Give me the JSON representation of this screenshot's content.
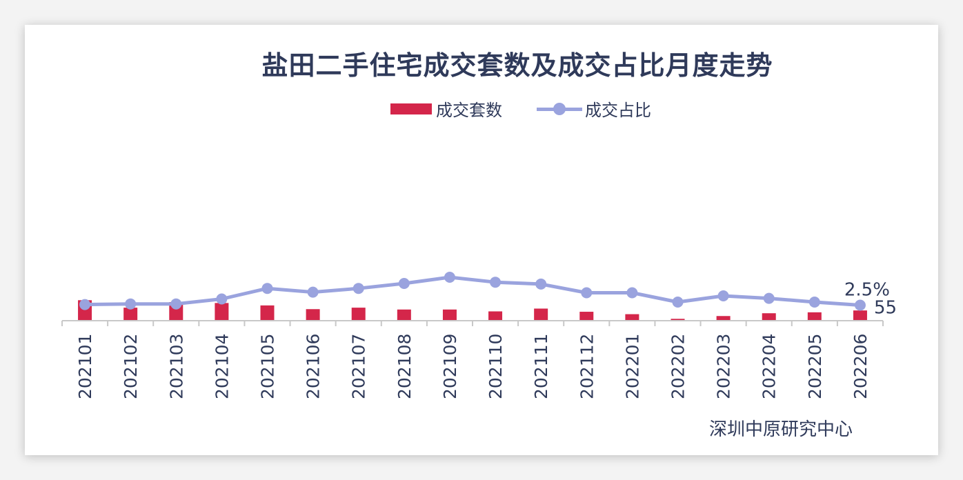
{
  "title": "盐田二手住宅成交套数及成交占比月度走势",
  "source": "深圳中原研究中心",
  "legend": {
    "bar_label": "成交套数",
    "line_label": "成交占比"
  },
  "colors": {
    "bar": "#d4264a",
    "line": "#9aa3de",
    "text": "#2f3a5a",
    "axis": "#c8c8c8"
  },
  "chart_data": {
    "type": "bar",
    "categories": [
      "202101",
      "202102",
      "202103",
      "202104",
      "202105",
      "202106",
      "202107",
      "202108",
      "202109",
      "202110",
      "202111",
      "202112",
      "202201",
      "202202",
      "202203",
      "202204",
      "202205",
      "202206"
    ],
    "series": [
      {
        "name": "成交套数",
        "type": "bar",
        "values": [
          110,
          70,
          100,
          95,
          82,
          62,
          70,
          60,
          60,
          50,
          65,
          48,
          35,
          10,
          25,
          40,
          45,
          55
        ]
      },
      {
        "name": "成交占比",
        "type": "line",
        "values": [
          2.6,
          2.7,
          2.7,
          3.5,
          5.2,
          4.6,
          5.2,
          6.0,
          7.0,
          6.2,
          5.9,
          4.5,
          4.5,
          3.0,
          4.0,
          3.6,
          3.0,
          2.5
        ]
      }
    ],
    "data_labels": {
      "bar_last": "55",
      "line_last": "2.5%"
    },
    "bar_axis_max": 1000,
    "line_axis_max": 30,
    "axis_labels_visible": false
  }
}
